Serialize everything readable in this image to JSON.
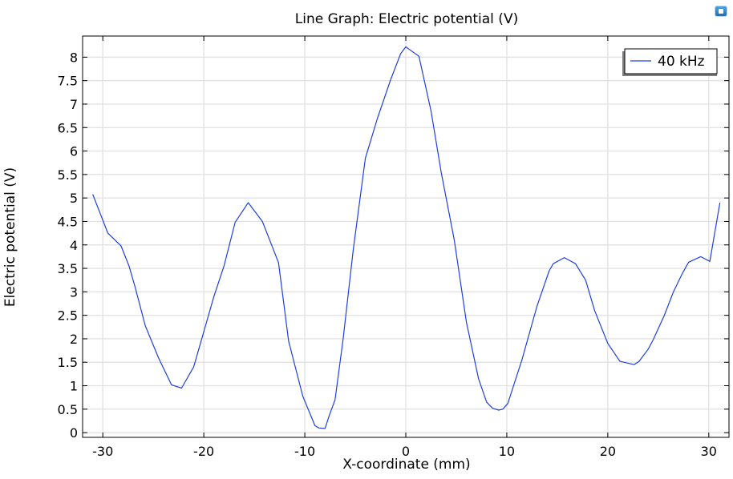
{
  "chart_data": {
    "type": "line",
    "title": "Line Graph: Electric potential (V)",
    "xlabel": "X-coordinate (mm)",
    "ylabel": "Electric potential (V)",
    "xlim": [
      -32,
      32
    ],
    "ylim": [
      -0.1,
      8.45
    ],
    "x_ticks": [
      -30,
      -20,
      -10,
      0,
      10,
      20,
      30
    ],
    "x_tick_labels": [
      "-30",
      "-20",
      "-10",
      "0",
      "10",
      "20",
      "30"
    ],
    "y_ticks": [
      0,
      0.5,
      1,
      1.5,
      2,
      2.5,
      3,
      3.5,
      4,
      4.5,
      5,
      5.5,
      6,
      6.5,
      7,
      7.5,
      8
    ],
    "y_tick_labels": [
      "0",
      "0.5",
      "1",
      "1.5",
      "2",
      "2.5",
      "3",
      "3.5",
      "4",
      "4.5",
      "5",
      "5.5",
      "6",
      "6.5",
      "7",
      "7.5",
      "8"
    ],
    "grid": true,
    "legend_position": "top-right",
    "series": [
      {
        "name": "40 kHz",
        "color": "#1f3fe0",
        "x": [
          -31,
          -29.5,
          -28.2,
          -27.4,
          -26.8,
          -25.8,
          -24.5,
          -23.2,
          -22.2,
          -21,
          -19,
          -18,
          -16.9,
          -15.6,
          -14.2,
          -13.2,
          -12.6,
          -11.6,
          -10.2,
          -9,
          -8.6,
          -8,
          -7.6,
          -7,
          -6.2,
          -5.2,
          -4,
          -2.8,
          -1.5,
          -0.5,
          0,
          1.3,
          2.5,
          3.5,
          4.8,
          6,
          7.2,
          8,
          8.6,
          9.2,
          9.6,
          10.1,
          11.5,
          13,
          14.2,
          14.6,
          15.7,
          16.8,
          17.8,
          18.7,
          20,
          21.2,
          22.6,
          23.1,
          24,
          24.5,
          25.6,
          26.5,
          27.4,
          28,
          29.2,
          30.1,
          31.1
        ],
        "values": [
          5.08,
          4.25,
          3.98,
          3.55,
          3.1,
          2.28,
          1.6,
          1.02,
          0.95,
          1.4,
          2.9,
          3.55,
          4.48,
          4.9,
          4.5,
          3.95,
          3.62,
          1.95,
          0.78,
          0.15,
          0.1,
          0.09,
          0.35,
          0.7,
          2.0,
          3.9,
          5.85,
          6.7,
          7.52,
          8.08,
          8.22,
          8.02,
          6.85,
          5.55,
          4.1,
          2.35,
          1.15,
          0.65,
          0.52,
          0.48,
          0.5,
          0.62,
          1.55,
          2.7,
          3.45,
          3.6,
          3.73,
          3.6,
          3.25,
          2.6,
          1.9,
          1.52,
          1.45,
          1.52,
          1.78,
          1.98,
          2.5,
          3.0,
          3.4,
          3.63,
          3.75,
          3.65,
          4.9
        ]
      }
    ]
  }
}
